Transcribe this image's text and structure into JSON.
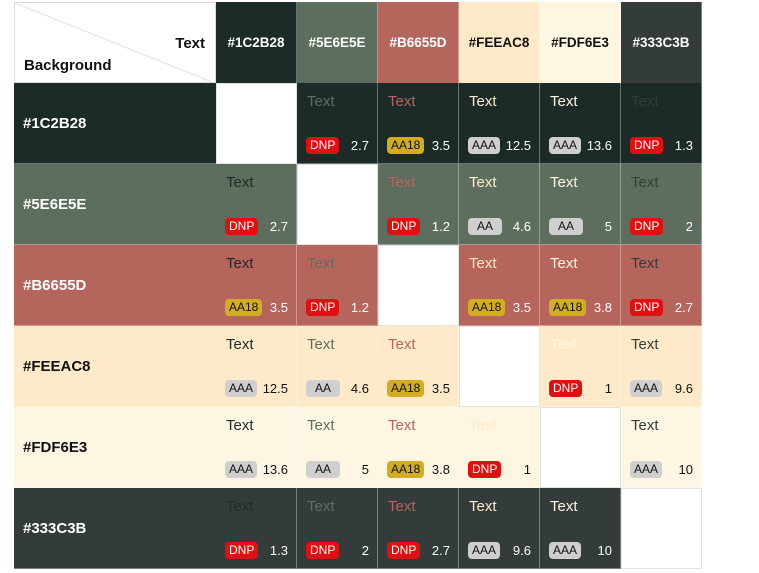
{
  "header": {
    "text_label": "Text",
    "background_label": "Background"
  },
  "colors": [
    {
      "name": "#1C2B28",
      "hex": "#1C2B28",
      "label_color": "#ffffff"
    },
    {
      "name": "#5E6E5E",
      "hex": "#5E6E5E",
      "label_color": "#ffffff"
    },
    {
      "name": "#B6655D",
      "hex": "#B6655D",
      "label_color": "#ffffff"
    },
    {
      "name": "#FEEAC8",
      "hex": "#FEEAC8",
      "label_color": "#111111"
    },
    {
      "name": "#FDF6E3",
      "hex": "#FDF6E3",
      "label_color": "#111111"
    },
    {
      "name": "#333C3B",
      "hex": "#333C3B",
      "label_color": "#ffffff"
    }
  ],
  "sample_text": "Text",
  "matrix": [
    [
      null,
      {
        "badge": "DNP",
        "ratio": "2.7"
      },
      {
        "badge": "AA18",
        "ratio": "3.5"
      },
      {
        "badge": "AAA",
        "ratio": "12.5"
      },
      {
        "badge": "AAA",
        "ratio": "13.6"
      },
      {
        "badge": "DNP",
        "ratio": "1.3"
      }
    ],
    [
      {
        "badge": "DNP",
        "ratio": "2.7"
      },
      null,
      {
        "badge": "DNP",
        "ratio": "1.2"
      },
      {
        "badge": "AA",
        "ratio": "4.6"
      },
      {
        "badge": "AA",
        "ratio": "5"
      },
      {
        "badge": "DNP",
        "ratio": "2"
      }
    ],
    [
      {
        "badge": "AA18",
        "ratio": "3.5"
      },
      {
        "badge": "DNP",
        "ratio": "1.2"
      },
      null,
      {
        "badge": "AA18",
        "ratio": "3.5"
      },
      {
        "badge": "AA18",
        "ratio": "3.8"
      },
      {
        "badge": "DNP",
        "ratio": "2.7"
      }
    ],
    [
      {
        "badge": "AAA",
        "ratio": "12.5"
      },
      {
        "badge": "AA",
        "ratio": "4.6"
      },
      {
        "badge": "AA18",
        "ratio": "3.5"
      },
      null,
      {
        "badge": "DNP",
        "ratio": "1"
      },
      {
        "badge": "AAA",
        "ratio": "9.6"
      }
    ],
    [
      {
        "badge": "AAA",
        "ratio": "13.6"
      },
      {
        "badge": "AA",
        "ratio": "5"
      },
      {
        "badge": "AA18",
        "ratio": "3.8"
      },
      {
        "badge": "DNP",
        "ratio": "1"
      },
      null,
      {
        "badge": "AAA",
        "ratio": "10"
      }
    ],
    [
      {
        "badge": "DNP",
        "ratio": "1.3"
      },
      {
        "badge": "DNP",
        "ratio": "2"
      },
      {
        "badge": "DNP",
        "ratio": "2.7"
      },
      {
        "badge": "AAA",
        "ratio": "9.6"
      },
      {
        "badge": "AAA",
        "ratio": "10"
      },
      null
    ]
  ]
}
